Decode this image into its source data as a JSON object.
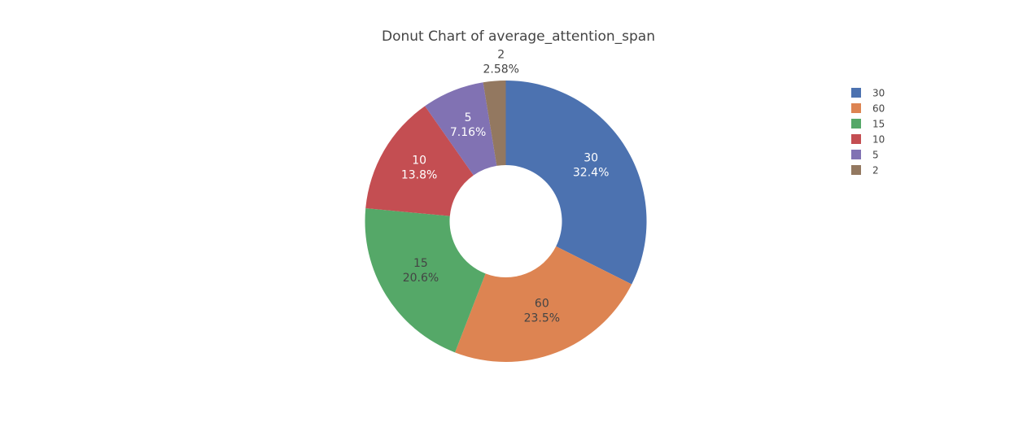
{
  "chart_data": {
    "type": "pie",
    "hole": true,
    "title": "Donut Chart of average_attention_span",
    "labels": [
      "30",
      "60",
      "15",
      "10",
      "5",
      "2"
    ],
    "values": [
      32.4,
      23.5,
      20.6,
      13.8,
      7.16,
      2.58
    ],
    "percent_labels": [
      "32.4%",
      "23.5%",
      "20.6%",
      "13.8%",
      "7.16%",
      "2.58%"
    ],
    "colors": [
      "#4c72b0",
      "#dd8452",
      "#55a868",
      "#c44e52",
      "#8172b3",
      "#937860"
    ],
    "label_colors": [
      "#ffffff",
      "#444444",
      "#444444",
      "#ffffff",
      "#ffffff",
      "#444444"
    ],
    "label_positions": [
      "inside",
      "inside",
      "inside",
      "inside",
      "inside",
      "outside"
    ],
    "legend": {
      "position": "top-right",
      "entries": [
        "30",
        "60",
        "15",
        "10",
        "5",
        "2"
      ]
    }
  }
}
